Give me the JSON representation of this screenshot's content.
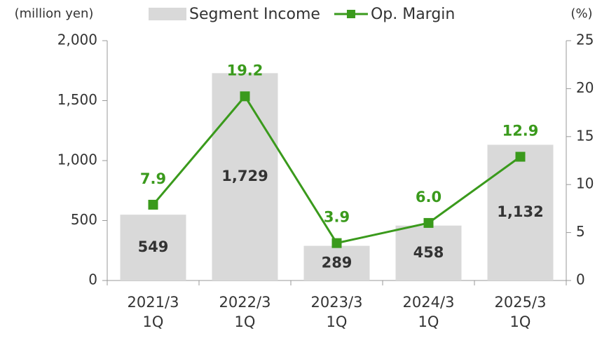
{
  "chart_data": {
    "type": "bar_line",
    "categories": [
      "2021/3\n1Q",
      "2022/3\n1Q",
      "2023/3\n1Q",
      "2024/3\n1Q",
      "2025/3\n1Q"
    ],
    "ylabel": "(million yen)",
    "y2label": "(%)",
    "ylim": [
      0,
      2000
    ],
    "yticks": [
      0,
      500,
      {
        "value": 1000,
        "label": "1,000"
      },
      {
        "value": 1500,
        "label": "1,500"
      },
      {
        "value": 2000,
        "label": "2,000"
      }
    ],
    "y2lim": [
      0,
      25
    ],
    "y2ticks": [
      0,
      5,
      10,
      15,
      20,
      25
    ],
    "legend": "top",
    "series": [
      {
        "name": "Segment Income",
        "type": "bar",
        "color": "#d9d9d9",
        "label_color": "#333333",
        "values": [
          549,
          1729,
          289,
          458,
          1132
        ],
        "value_labels": [
          "549",
          "1,729",
          "289",
          "458",
          "1,132"
        ]
      },
      {
        "name": "Op. Margin",
        "type": "line",
        "axis": "y2",
        "color": "#3a9a1c",
        "label_color": "#3a9a1c",
        "values": [
          7.9,
          19.2,
          3.9,
          6.0,
          12.9
        ],
        "value_labels": [
          "7.9",
          "19.2",
          "3.9",
          "6.0",
          "12.9"
        ]
      }
    ]
  }
}
